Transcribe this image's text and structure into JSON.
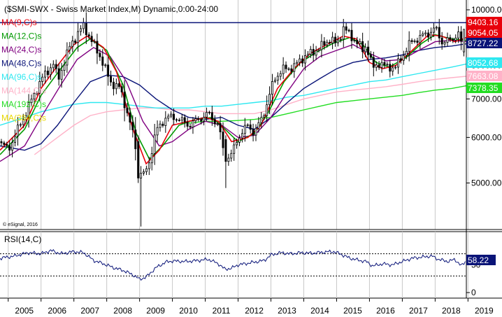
{
  "chart_data": {
    "type": "candlestick",
    "title": "($SMI-SWX - Swiss Market Index,M) Dynamic,0:00-24:00",
    "copyright": "© eSignal, 2016",
    "price_ticks": [
      "10000.00",
      "9000.00",
      "8000.00",
      "7000.00",
      "6000.00",
      "5000.00"
    ],
    "price_tick_values": [
      10000,
      9000,
      8000,
      7000,
      6000,
      5000
    ],
    "price_range": [
      4150,
      10400
    ],
    "years": [
      "2005",
      "2006",
      "2007",
      "2008",
      "2009",
      "2010",
      "2011",
      "2012",
      "2013",
      "2014",
      "2015",
      "2016",
      "2017",
      "2018",
      "2019"
    ],
    "time_range": [
      2004.75,
      2018.95
    ],
    "resistance_level": 9500,
    "ma_legend": [
      {
        "label": "MA(9,C)s",
        "color": "#e8000b"
      },
      {
        "label": "MA(12,C)s",
        "color": "#009a00"
      },
      {
        "label": "MA(24,C)s",
        "color": "#800080"
      },
      {
        "label": "MA(48,C)s",
        "color": "#0a1478"
      },
      {
        "label": "MA(96,C)s",
        "color": "#2ee8f0"
      },
      {
        "label": "MA(144,C)s",
        "color": "#ffb2c8"
      },
      {
        "label": "MA(192,C)s",
        "color": "#22dd22"
      },
      {
        "label": "MA(384,C)s",
        "color": "#e8d800"
      }
    ],
    "price_path": [
      [
        2004.75,
        5900
      ],
      [
        2005.0,
        5700
      ],
      [
        2005.5,
        6550
      ],
      [
        2006.0,
        7550
      ],
      [
        2006.4,
        8100
      ],
      [
        2006.5,
        7500
      ],
      [
        2006.9,
        8700
      ],
      [
        2007.3,
        9400
      ],
      [
        2007.5,
        8900
      ],
      [
        2007.8,
        8300
      ],
      [
        2008.1,
        7500
      ],
      [
        2008.4,
        7300
      ],
      [
        2008.7,
        6400
      ],
      [
        2008.9,
        5700
      ],
      [
        2009.1,
        5100
      ],
      [
        2009.3,
        5450
      ],
      [
        2009.5,
        6150
      ],
      [
        2009.8,
        6500
      ],
      [
        2010.1,
        6500
      ],
      [
        2010.5,
        6300
      ],
      [
        2010.9,
        6500
      ],
      [
        2011.1,
        6600
      ],
      [
        2011.4,
        6300
      ],
      [
        2011.6,
        5500
      ],
      [
        2011.8,
        5600
      ],
      [
        2012.0,
        6000
      ],
      [
        2012.3,
        6300
      ],
      [
        2012.5,
        6100
      ],
      [
        2012.7,
        6450
      ],
      [
        2012.9,
        6900
      ],
      [
        2013.1,
        7600
      ],
      [
        2013.4,
        7900
      ],
      [
        2013.7,
        7950
      ],
      [
        2013.9,
        8200
      ],
      [
        2014.2,
        8400
      ],
      [
        2014.5,
        8600
      ],
      [
        2014.8,
        8900
      ],
      [
        2015.0,
        8700
      ],
      [
        2015.2,
        9300
      ],
      [
        2015.4,
        9050
      ],
      [
        2015.6,
        8800
      ],
      [
        2015.8,
        8500
      ],
      [
        2015.9,
        8700
      ],
      [
        2016.1,
        7900
      ],
      [
        2016.3,
        8100
      ],
      [
        2016.5,
        7950
      ],
      [
        2016.8,
        7950
      ],
      [
        2017.0,
        8300
      ],
      [
        2017.2,
        8700
      ],
      [
        2017.5,
        8950
      ],
      [
        2017.8,
        9100
      ],
      [
        2018.0,
        9300
      ],
      [
        2018.2,
        8800
      ],
      [
        2018.5,
        8850
      ],
      [
        2018.7,
        9150
      ],
      [
        2018.85,
        8450
      ],
      [
        2018.95,
        9250
      ]
    ],
    "special_candles": [
      {
        "t": 2008.95,
        "o": 5900,
        "h": 6050,
        "l": 5000,
        "c": 5100
      },
      {
        "t": 2009.05,
        "o": 5100,
        "h": 5350,
        "l": 4200,
        "c": 5200
      },
      {
        "t": 2011.6,
        "o": 5950,
        "h": 6050,
        "l": 4900,
        "c": 5450
      },
      {
        "t": 2018.9,
        "o": 8450,
        "h": 9250,
        "l": 8300,
        "c": 9250
      }
    ],
    "ma_curves": {
      "ma9": [
        [
          2004.75,
          5700
        ],
        [
          2005.5,
          6300
        ],
        [
          2006.0,
          7300
        ],
        [
          2006.5,
          8000
        ],
        [
          2007.0,
          8700
        ],
        [
          2007.4,
          9000
        ],
        [
          2007.9,
          8600
        ],
        [
          2008.3,
          7800
        ],
        [
          2008.8,
          6200
        ],
        [
          2009.2,
          5400
        ],
        [
          2009.6,
          5700
        ],
        [
          2010.0,
          6300
        ],
        [
          2010.5,
          6400
        ],
        [
          2011.0,
          6500
        ],
        [
          2011.4,
          6400
        ],
        [
          2011.8,
          5900
        ],
        [
          2012.3,
          6000
        ],
        [
          2012.7,
          6300
        ],
        [
          2013.2,
          7300
        ],
        [
          2013.7,
          7900
        ],
        [
          2014.2,
          8400
        ],
        [
          2014.7,
          8700
        ],
        [
          2015.2,
          9000
        ],
        [
          2015.6,
          8900
        ],
        [
          2016.0,
          8100
        ],
        [
          2016.4,
          7900
        ],
        [
          2016.8,
          8000
        ],
        [
          2017.3,
          8500
        ],
        [
          2017.8,
          9050
        ],
        [
          2018.2,
          9000
        ],
        [
          2018.6,
          8800
        ],
        [
          2018.95,
          8950
        ]
      ],
      "ma12": [
        [
          2004.75,
          5600
        ],
        [
          2005.5,
          6200
        ],
        [
          2006.0,
          7100
        ],
        [
          2006.6,
          7900
        ],
        [
          2007.1,
          8600
        ],
        [
          2007.5,
          8900
        ],
        [
          2008.0,
          8500
        ],
        [
          2008.5,
          7400
        ],
        [
          2008.9,
          6100
        ],
        [
          2009.3,
          5500
        ],
        [
          2009.7,
          5800
        ],
        [
          2010.2,
          6300
        ],
        [
          2010.7,
          6450
        ],
        [
          2011.2,
          6500
        ],
        [
          2011.6,
          6200
        ],
        [
          2012.0,
          5900
        ],
        [
          2012.5,
          6100
        ],
        [
          2012.9,
          6600
        ],
        [
          2013.4,
          7500
        ],
        [
          2013.9,
          8100
        ],
        [
          2014.4,
          8450
        ],
        [
          2014.9,
          8750
        ],
        [
          2015.4,
          8950
        ],
        [
          2015.8,
          8700
        ],
        [
          2016.2,
          8100
        ],
        [
          2016.6,
          7950
        ],
        [
          2017.1,
          8250
        ],
        [
          2017.6,
          8750
        ],
        [
          2018.0,
          9050
        ],
        [
          2018.5,
          8900
        ],
        [
          2018.95,
          8850
        ]
      ],
      "ma24": [
        [
          2004.75,
          5450
        ],
        [
          2005.5,
          5800
        ],
        [
          2006.0,
          6500
        ],
        [
          2006.6,
          7400
        ],
        [
          2007.1,
          8200
        ],
        [
          2007.6,
          8600
        ],
        [
          2008.1,
          8300
        ],
        [
          2008.6,
          7500
        ],
        [
          2009.1,
          6400
        ],
        [
          2009.6,
          5800
        ],
        [
          2010.0,
          5900
        ],
        [
          2010.5,
          6200
        ],
        [
          2011.0,
          6400
        ],
        [
          2011.5,
          6300
        ],
        [
          2012.0,
          6000
        ],
        [
          2012.5,
          6050
        ],
        [
          2013.0,
          6500
        ],
        [
          2013.5,
          7200
        ],
        [
          2014.0,
          7900
        ],
        [
          2014.5,
          8300
        ],
        [
          2015.0,
          8500
        ],
        [
          2015.5,
          8700
        ],
        [
          2016.0,
          8400
        ],
        [
          2016.5,
          8150
        ],
        [
          2017.0,
          8200
        ],
        [
          2017.5,
          8500
        ],
        [
          2018.0,
          8800
        ],
        [
          2018.5,
          8850
        ],
        [
          2018.95,
          8800
        ]
      ],
      "ma48": [
        [
          2004.75,
          5800
        ],
        [
          2005.5,
          5700
        ],
        [
          2006.0,
          5850
        ],
        [
          2006.5,
          6300
        ],
        [
          2007.0,
          6900
        ],
        [
          2007.5,
          7500
        ],
        [
          2008.0,
          7700
        ],
        [
          2008.5,
          7650
        ],
        [
          2009.0,
          7400
        ],
        [
          2009.5,
          7000
        ],
        [
          2010.0,
          6700
        ],
        [
          2010.5,
          6500
        ],
        [
          2011.0,
          6450
        ],
        [
          2011.5,
          6500
        ],
        [
          2012.0,
          6300
        ],
        [
          2012.5,
          6200
        ],
        [
          2013.0,
          6500
        ],
        [
          2013.5,
          6900
        ],
        [
          2014.0,
          7300
        ],
        [
          2014.5,
          7600
        ],
        [
          2015.0,
          7900
        ],
        [
          2015.5,
          8100
        ],
        [
          2016.0,
          8200
        ],
        [
          2016.5,
          8250
        ],
        [
          2017.0,
          8350
        ],
        [
          2017.5,
          8500
        ],
        [
          2018.0,
          8600
        ],
        [
          2018.5,
          8650
        ],
        [
          2018.95,
          8727
        ]
      ],
      "ma96": [
        [
          2004.75,
          6300
        ],
        [
          2005.5,
          6500
        ],
        [
          2006.0,
          6650
        ],
        [
          2006.5,
          6750
        ],
        [
          2007.0,
          6850
        ],
        [
          2007.5,
          6900
        ],
        [
          2008.0,
          6900
        ],
        [
          2008.5,
          6850
        ],
        [
          2009.0,
          6800
        ],
        [
          2009.5,
          6750
        ],
        [
          2010.0,
          6750
        ],
        [
          2010.5,
          6750
        ],
        [
          2011.0,
          6800
        ],
        [
          2011.5,
          6800
        ],
        [
          2012.0,
          6850
        ],
        [
          2012.5,
          6900
        ],
        [
          2013.0,
          6950
        ],
        [
          2013.5,
          7050
        ],
        [
          2014.0,
          7100
        ],
        [
          2014.5,
          7200
        ],
        [
          2015.0,
          7300
        ],
        [
          2015.5,
          7400
        ],
        [
          2016.0,
          7500
        ],
        [
          2016.5,
          7550
        ],
        [
          2017.0,
          7650
        ],
        [
          2017.5,
          7750
        ],
        [
          2018.0,
          7850
        ],
        [
          2018.5,
          7950
        ],
        [
          2018.95,
          8052
        ]
      ],
      "ma144": [
        [
          2005.8,
          5600
        ],
        [
          2006.5,
          6000
        ],
        [
          2007.0,
          6300
        ],
        [
          2007.5,
          6550
        ],
        [
          2008.0,
          6650
        ],
        [
          2008.5,
          6700
        ],
        [
          2009.0,
          6750
        ],
        [
          2009.5,
          6750
        ],
        [
          2010.0,
          6700
        ],
        [
          2010.5,
          6700
        ],
        [
          2011.0,
          6650
        ],
        [
          2011.5,
          6600
        ],
        [
          2012.0,
          6600
        ],
        [
          2012.5,
          6600
        ],
        [
          2013.0,
          6700
        ],
        [
          2013.5,
          6850
        ],
        [
          2014.0,
          7000
        ],
        [
          2014.5,
          7100
        ],
        [
          2015.0,
          7200
        ],
        [
          2015.5,
          7250
        ],
        [
          2016.0,
          7300
        ],
        [
          2016.5,
          7350
        ],
        [
          2017.0,
          7420
        ],
        [
          2017.5,
          7500
        ],
        [
          2018.0,
          7570
        ],
        [
          2018.5,
          7620
        ],
        [
          2018.95,
          7663
        ]
      ],
      "ma192": [
        [
          2010.5,
          6350
        ],
        [
          2011.0,
          6400
        ],
        [
          2011.5,
          6400
        ],
        [
          2012.0,
          6420
        ],
        [
          2012.5,
          6450
        ],
        [
          2013.0,
          6500
        ],
        [
          2013.5,
          6600
        ],
        [
          2014.0,
          6700
        ],
        [
          2014.5,
          6800
        ],
        [
          2015.0,
          6900
        ],
        [
          2015.5,
          6950
        ],
        [
          2016.0,
          7000
        ],
        [
          2016.5,
          7050
        ],
        [
          2017.0,
          7100
        ],
        [
          2017.5,
          7180
        ],
        [
          2018.0,
          7250
        ],
        [
          2018.5,
          7300
        ],
        [
          2018.95,
          7378
        ]
      ]
    },
    "price_tags": [
      {
        "label": "9403.16",
        "color": "#e8000b",
        "text_color": "#ffffff"
      },
      {
        "label": "9054.05",
        "color": "#e8000b",
        "text_color": "#ffffff"
      },
      {
        "label": "8727.22",
        "color": "#0a1478",
        "text_color": "#ffffff"
      },
      {
        "label": "8052.68",
        "color": "#2ee8f0",
        "text_color": "#ffffff"
      },
      {
        "label": "7663.08",
        "color": "#ffb2c8",
        "text_color": "#ffffff"
      },
      {
        "label": "7378.35",
        "color": "#22dd22",
        "text_color": "#ffffff"
      }
    ],
    "rsi": {
      "label": "RSI(14,C)",
      "ticks": [
        "50",
        "0"
      ],
      "tick_values": [
        50,
        0
      ],
      "range": [
        -10,
        110
      ],
      "overbought": 70,
      "oversold": 30,
      "current": "58.22",
      "current_color": "#0a1478",
      "series": [
        [
          2004.75,
          62
        ],
        [
          2005.2,
          66
        ],
        [
          2005.6,
          72
        ],
        [
          2006.0,
          70
        ],
        [
          2006.3,
          76
        ],
        [
          2006.6,
          70
        ],
        [
          2007.0,
          74
        ],
        [
          2007.3,
          72
        ],
        [
          2007.6,
          58
        ],
        [
          2007.9,
          52
        ],
        [
          2008.2,
          45
        ],
        [
          2008.5,
          40
        ],
        [
          2008.8,
          32
        ],
        [
          2009.0,
          24
        ],
        [
          2009.2,
          28
        ],
        [
          2009.5,
          45
        ],
        [
          2009.8,
          55
        ],
        [
          2010.0,
          57
        ],
        [
          2010.4,
          56
        ],
        [
          2010.8,
          58
        ],
        [
          2011.1,
          60
        ],
        [
          2011.4,
          52
        ],
        [
          2011.6,
          42
        ],
        [
          2011.8,
          44
        ],
        [
          2012.0,
          50
        ],
        [
          2012.4,
          54
        ],
        [
          2012.8,
          58
        ],
        [
          2013.0,
          68
        ],
        [
          2013.3,
          72
        ],
        [
          2013.6,
          70
        ],
        [
          2013.9,
          72
        ],
        [
          2014.2,
          71
        ],
        [
          2014.6,
          73
        ],
        [
          2014.9,
          74
        ],
        [
          2015.1,
          70
        ],
        [
          2015.4,
          62
        ],
        [
          2015.7,
          58
        ],
        [
          2015.9,
          56
        ],
        [
          2016.1,
          48
        ],
        [
          2016.4,
          52
        ],
        [
          2016.7,
          50
        ],
        [
          2017.0,
          56
        ],
        [
          2017.3,
          62
        ],
        [
          2017.6,
          64
        ],
        [
          2017.9,
          66
        ],
        [
          2018.1,
          60
        ],
        [
          2018.4,
          56
        ],
        [
          2018.6,
          60
        ],
        [
          2018.8,
          48
        ],
        [
          2018.95,
          58.22
        ]
      ]
    }
  }
}
